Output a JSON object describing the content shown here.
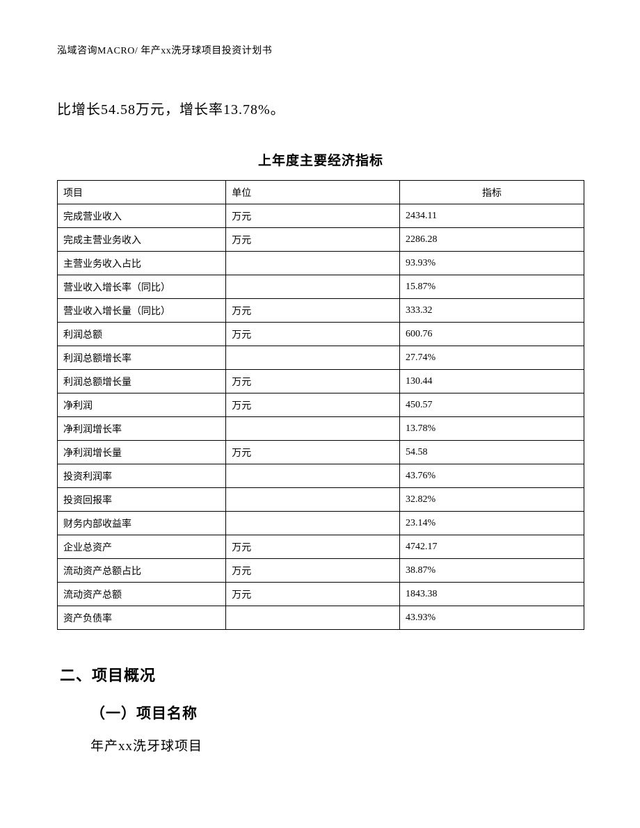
{
  "header": {
    "text": "泓域咨询MACRO/ 年产xx洗牙球项目投资计划书"
  },
  "body_line": {
    "text": "比增长54.58万元，增长率13.78%。"
  },
  "table": {
    "title": "上年度主要经济指标",
    "columns": [
      "项目",
      "单位",
      "指标"
    ],
    "rows": [
      [
        "完成营业收入",
        "万元",
        "2434.11"
      ],
      [
        "完成主营业务收入",
        "万元",
        "2286.28"
      ],
      [
        "主营业务收入占比",
        "",
        "93.93%"
      ],
      [
        "营业收入增长率（同比）",
        "",
        "15.87%"
      ],
      [
        "营业收入增长量（同比）",
        "万元",
        "333.32"
      ],
      [
        "利润总额",
        "万元",
        "600.76"
      ],
      [
        "利润总额增长率",
        "",
        "27.74%"
      ],
      [
        "利润总额增长量",
        "万元",
        "130.44"
      ],
      [
        "净利润",
        "万元",
        "450.57"
      ],
      [
        "净利润增长率",
        "",
        "13.78%"
      ],
      [
        "净利润增长量",
        "万元",
        "54.58"
      ],
      [
        "投资利润率",
        "",
        "43.76%"
      ],
      [
        "投资回报率",
        "",
        "32.82%"
      ],
      [
        "财务内部收益率",
        "",
        "23.14%"
      ],
      [
        "企业总资产",
        "万元",
        "4742.17"
      ],
      [
        "流动资产总额占比",
        "万元",
        "38.87%"
      ],
      [
        "流动资产总额",
        "万元",
        "1843.38"
      ],
      [
        "资产负债率",
        "",
        "43.93%"
      ]
    ]
  },
  "section": {
    "heading": "二、项目概况",
    "sub_heading": "（一）项目名称",
    "sub_body": "年产xx洗牙球项目"
  },
  "style": {
    "background_color": "#ffffff",
    "text_color": "#000000",
    "border_color": "#000000",
    "header_fontsize": 14,
    "body_fontsize": 20,
    "table_title_fontsize": 19,
    "table_fontsize": 14,
    "section_heading_fontsize": 22,
    "subsection_heading_fontsize": 21,
    "subsection_body_fontsize": 19,
    "col_widths_pct": [
      32,
      33,
      35
    ]
  }
}
